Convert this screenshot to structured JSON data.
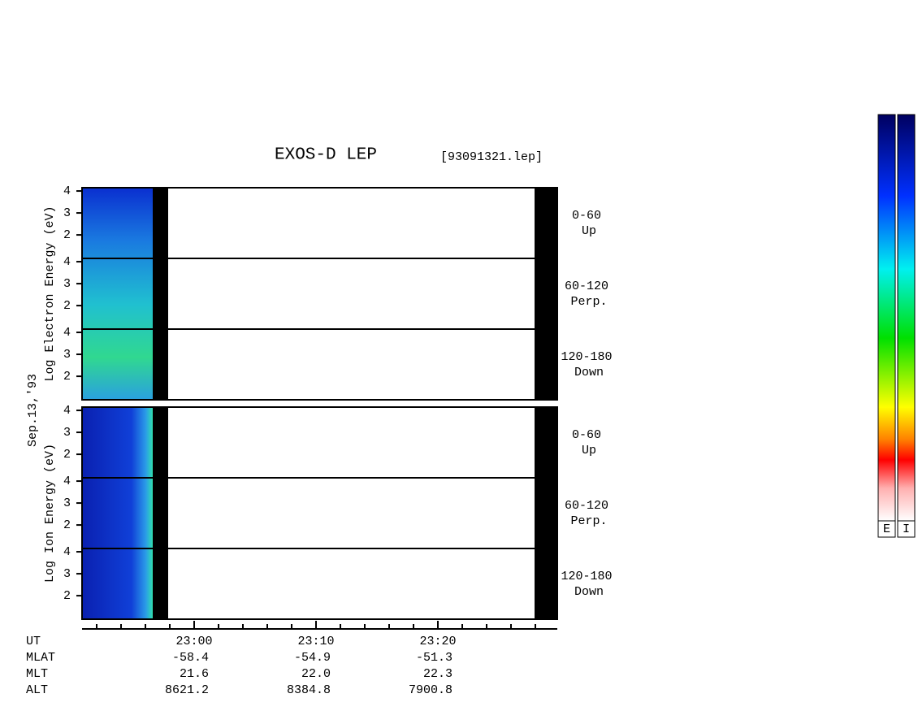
{
  "header": {
    "title": "EXOS-D LEP",
    "file": "[93091321.lep]"
  },
  "chart_data": {
    "type": "spectrogram",
    "date": "Sep.13,'93",
    "panels": [
      {
        "ylabel": "Log Electron Energy (eV)",
        "channels": [
          {
            "angle": "0-60",
            "direction": "Up"
          },
          {
            "angle": "60-120",
            "direction": "Perp."
          },
          {
            "angle": "120-180",
            "direction": "Down"
          }
        ]
      },
      {
        "ylabel": "Log Ion Energy (eV)",
        "channels": [
          {
            "angle": "0-60",
            "direction": "Up"
          },
          {
            "angle": "60-120",
            "direction": "Perp."
          },
          {
            "angle": "120-180",
            "direction": "Down"
          }
        ]
      }
    ],
    "ylim": [
      0.93,
      4.15
    ],
    "yticks": [
      2,
      3,
      4
    ],
    "xlim": [
      50.8,
      89.8
    ],
    "xticks": [
      {
        "value": 60,
        "label": "23:00"
      },
      {
        "value": 70,
        "label": "23:10"
      },
      {
        "value": 80,
        "label": "23:20"
      }
    ],
    "xminorticks": [
      52,
      54,
      56,
      58,
      62,
      64,
      66,
      68,
      72,
      74,
      76,
      78,
      82,
      84,
      86,
      88
    ],
    "orbit": [
      {
        "name": "UT"
      },
      {
        "name": "MLAT",
        "values": [
          "-58.4",
          "-54.9",
          "-51.3"
        ]
      },
      {
        "name": "MLT",
        "values": [
          "21.6",
          "22.0",
          "22.3"
        ]
      },
      {
        "name": "ALT",
        "values": [
          "8621.2",
          "8384.8",
          "7900.8"
        ]
      }
    ],
    "colorbars": [
      "E",
      "I"
    ]
  }
}
